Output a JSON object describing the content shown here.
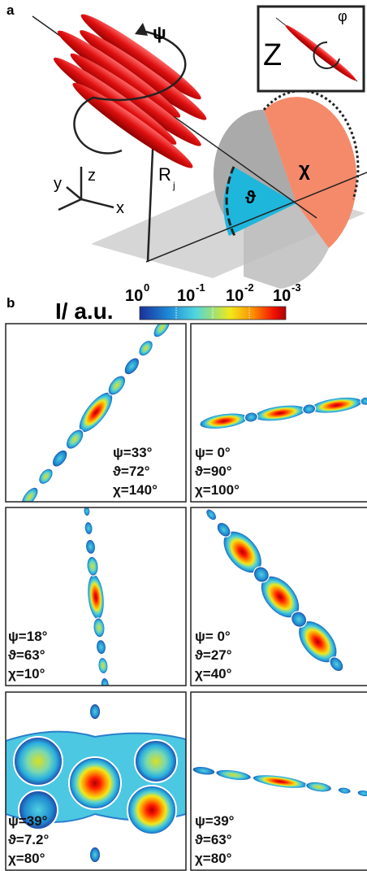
{
  "panel_a": {
    "label": "a",
    "psi": "ψ",
    "radius": "R",
    "radius_sub": "j",
    "axes": [
      "y",
      "z",
      "x"
    ],
    "theta": "ϑ",
    "chi": "χ",
    "inset": {
      "axis": "Z",
      "angle": "φ"
    }
  },
  "panel_b": {
    "label": "b",
    "colorbar": {
      "label": "I/ a.u.",
      "ticks": [
        {
          "base": "10",
          "exp": "0"
        },
        {
          "base": "10",
          "exp": "-1"
        },
        {
          "base": "10",
          "exp": "-2"
        },
        {
          "base": "10",
          "exp": "-3"
        }
      ]
    },
    "panels": [
      {
        "psi": "ψ=33°",
        "theta": "ϑ=72°",
        "chi": "χ=140°"
      },
      {
        "psi": "ψ= 0°",
        "theta": "ϑ=90°",
        "chi": "χ=100°"
      },
      {
        "psi": "ψ=18°",
        "theta": "ϑ=63°",
        "chi": "χ=10°"
      },
      {
        "psi": "ψ= 0°",
        "theta": "ϑ=27°",
        "chi": "χ=40°"
      },
      {
        "psi": "ψ=39°",
        "theta": "ϑ=7.2°",
        "chi": "χ=80°"
      },
      {
        "psi": "ψ=39°",
        "theta": "ϑ=63°",
        "chi": "χ=80°"
      }
    ]
  }
}
